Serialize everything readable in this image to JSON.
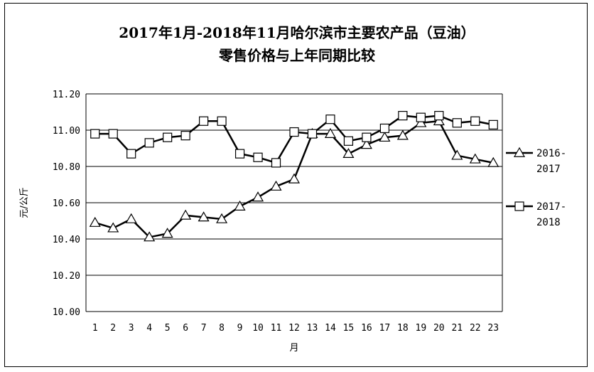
{
  "chart_data": {
    "type": "line",
    "title": "2017年1月-2018年11月哈尔滨市主要农产品（豆油）",
    "subtitle": "零售价格与上年同期比较",
    "xlabel": "月",
    "ylabel": "元/公斤",
    "ylim": [
      10.0,
      11.2
    ],
    "y_ticks": [
      "10.00",
      "10.20",
      "10.40",
      "10.60",
      "10.80",
      "11.00",
      "11.20"
    ],
    "categories": [
      "1",
      "2",
      "3",
      "4",
      "5",
      "6",
      "7",
      "8",
      "9",
      "10",
      "11",
      "12",
      "13",
      "14",
      "15",
      "16",
      "17",
      "18",
      "19",
      "20",
      "21",
      "22",
      "23"
    ],
    "grid": "horizontal",
    "legend_position": "right",
    "series": [
      {
        "name": "2016-2017",
        "marker": "triangle",
        "values": [
          10.49,
          10.46,
          10.51,
          10.41,
          10.43,
          10.53,
          10.52,
          10.51,
          10.58,
          10.63,
          10.69,
          10.73,
          10.98,
          10.98,
          10.87,
          10.92,
          10.96,
          10.97,
          11.04,
          11.05,
          10.86,
          10.84,
          10.82
        ]
      },
      {
        "name": "2017-2018",
        "marker": "square",
        "values": [
          10.98,
          10.98,
          10.87,
          10.93,
          10.96,
          10.97,
          11.05,
          11.05,
          10.87,
          10.85,
          10.82,
          10.99,
          10.98,
          11.06,
          10.94,
          10.96,
          11.01,
          11.08,
          11.07,
          11.08,
          11.04,
          11.05,
          11.03
        ]
      }
    ],
    "legend": [
      {
        "line1": "2016-",
        "line2": "2017"
      },
      {
        "line1": "2017-",
        "line2": "2018"
      }
    ]
  }
}
